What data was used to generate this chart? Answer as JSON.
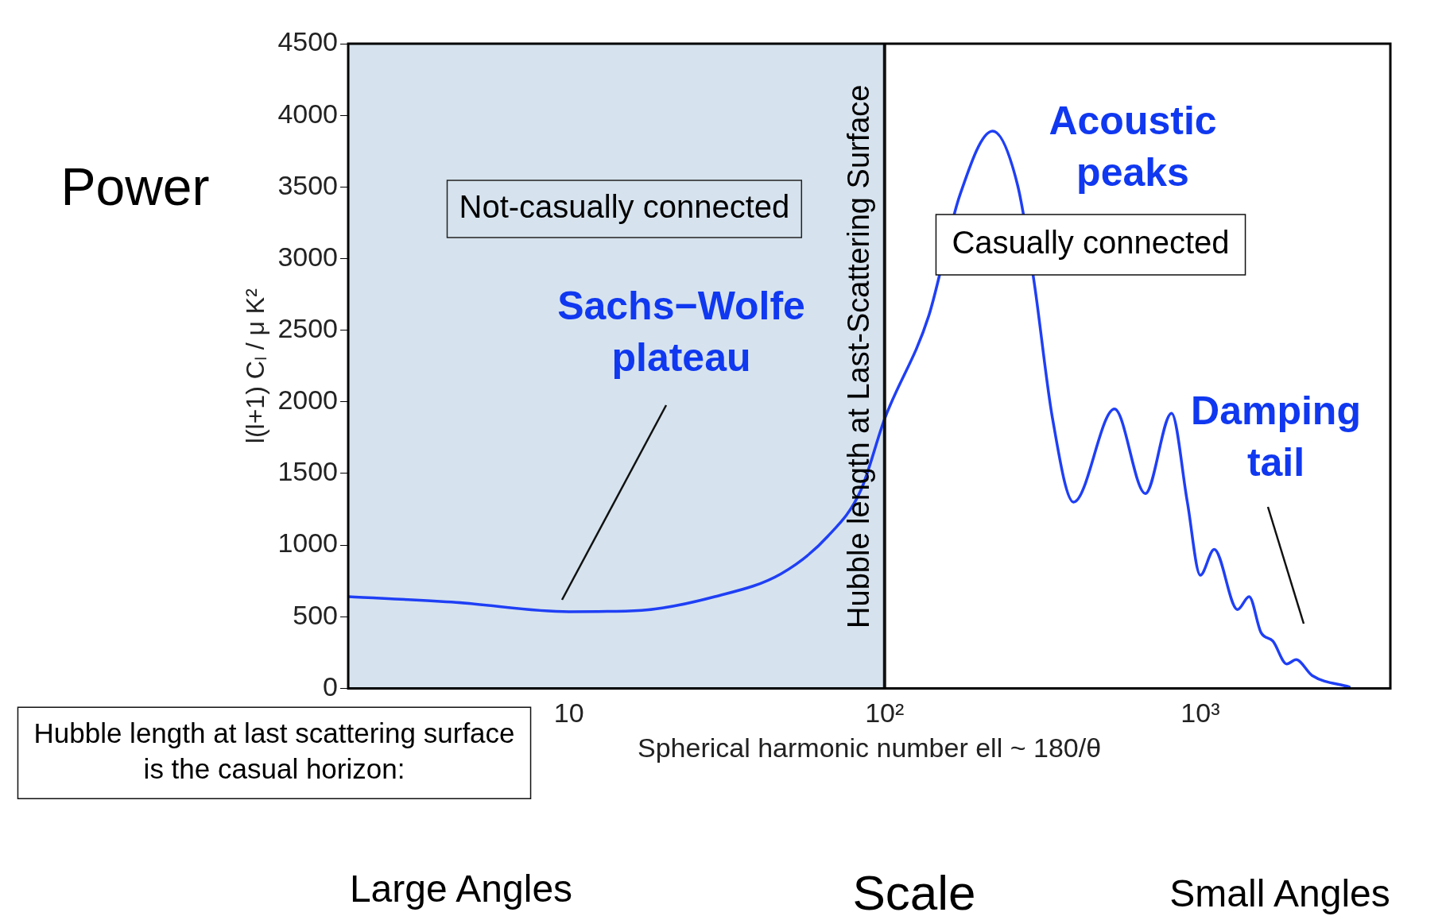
{
  "chart_data": {
    "type": "line",
    "xlabel": "Spherical harmonic number ell ~ 180/θ",
    "ylabel": "l(l+1) Cₗ / μ K²",
    "log": "x",
    "xlim": [
      2,
      4000
    ],
    "xticks": [
      {
        "value": 10,
        "label": "10"
      },
      {
        "value": 100,
        "label": "10²"
      },
      {
        "value": 1000,
        "label": "10³"
      }
    ],
    "ylim": [
      0,
      4500
    ],
    "yticks": [
      0,
      500,
      1000,
      1500,
      2000,
      2500,
      3000,
      3500,
      4000,
      4500
    ],
    "grid": false,
    "legend": false,
    "marker": "none",
    "line_style": "solid",
    "series": [
      {
        "color": "#1f3ff5",
        "x": [
          2,
          4.4,
          10,
          17,
          29,
          47,
          66,
          84,
          100,
          138,
          173,
          220,
          264,
          297,
          340,
          397,
          535,
          670,
          811,
          910,
          1000,
          1107,
          1312,
          1428,
          1557,
          1698,
          1879,
          2012,
          2260,
          2965
        ],
        "values": [
          640,
          600,
          535,
          545,
          640,
          800,
          1060,
          1380,
          1880,
          2600,
          3440,
          3890,
          3510,
          2850,
          1890,
          1300,
          1950,
          1360,
          1920,
          1300,
          790,
          970,
          550,
          640,
          390,
          330,
          170,
          200,
          90,
          10
        ]
      }
    ],
    "bands": [
      {
        "axis": "x",
        "from": 2,
        "to": 100,
        "label": "Not-casually connected",
        "color": "#d6e3ee"
      }
    ],
    "ref_lines": [
      {
        "axis": "x",
        "value": 100,
        "label": "Hubble length at Last-Scattering Surface",
        "color": "#111111",
        "line_style": "solid"
      }
    ],
    "annotations": [
      "Power",
      "Large Angles",
      "Scale",
      "Small Angles",
      "Casually connected",
      "Sachs−Wolfe plateau",
      "Acoustic peaks",
      "Damping tail",
      "Hubble length at last scattering surface is the casual horizon:"
    ]
  }
}
